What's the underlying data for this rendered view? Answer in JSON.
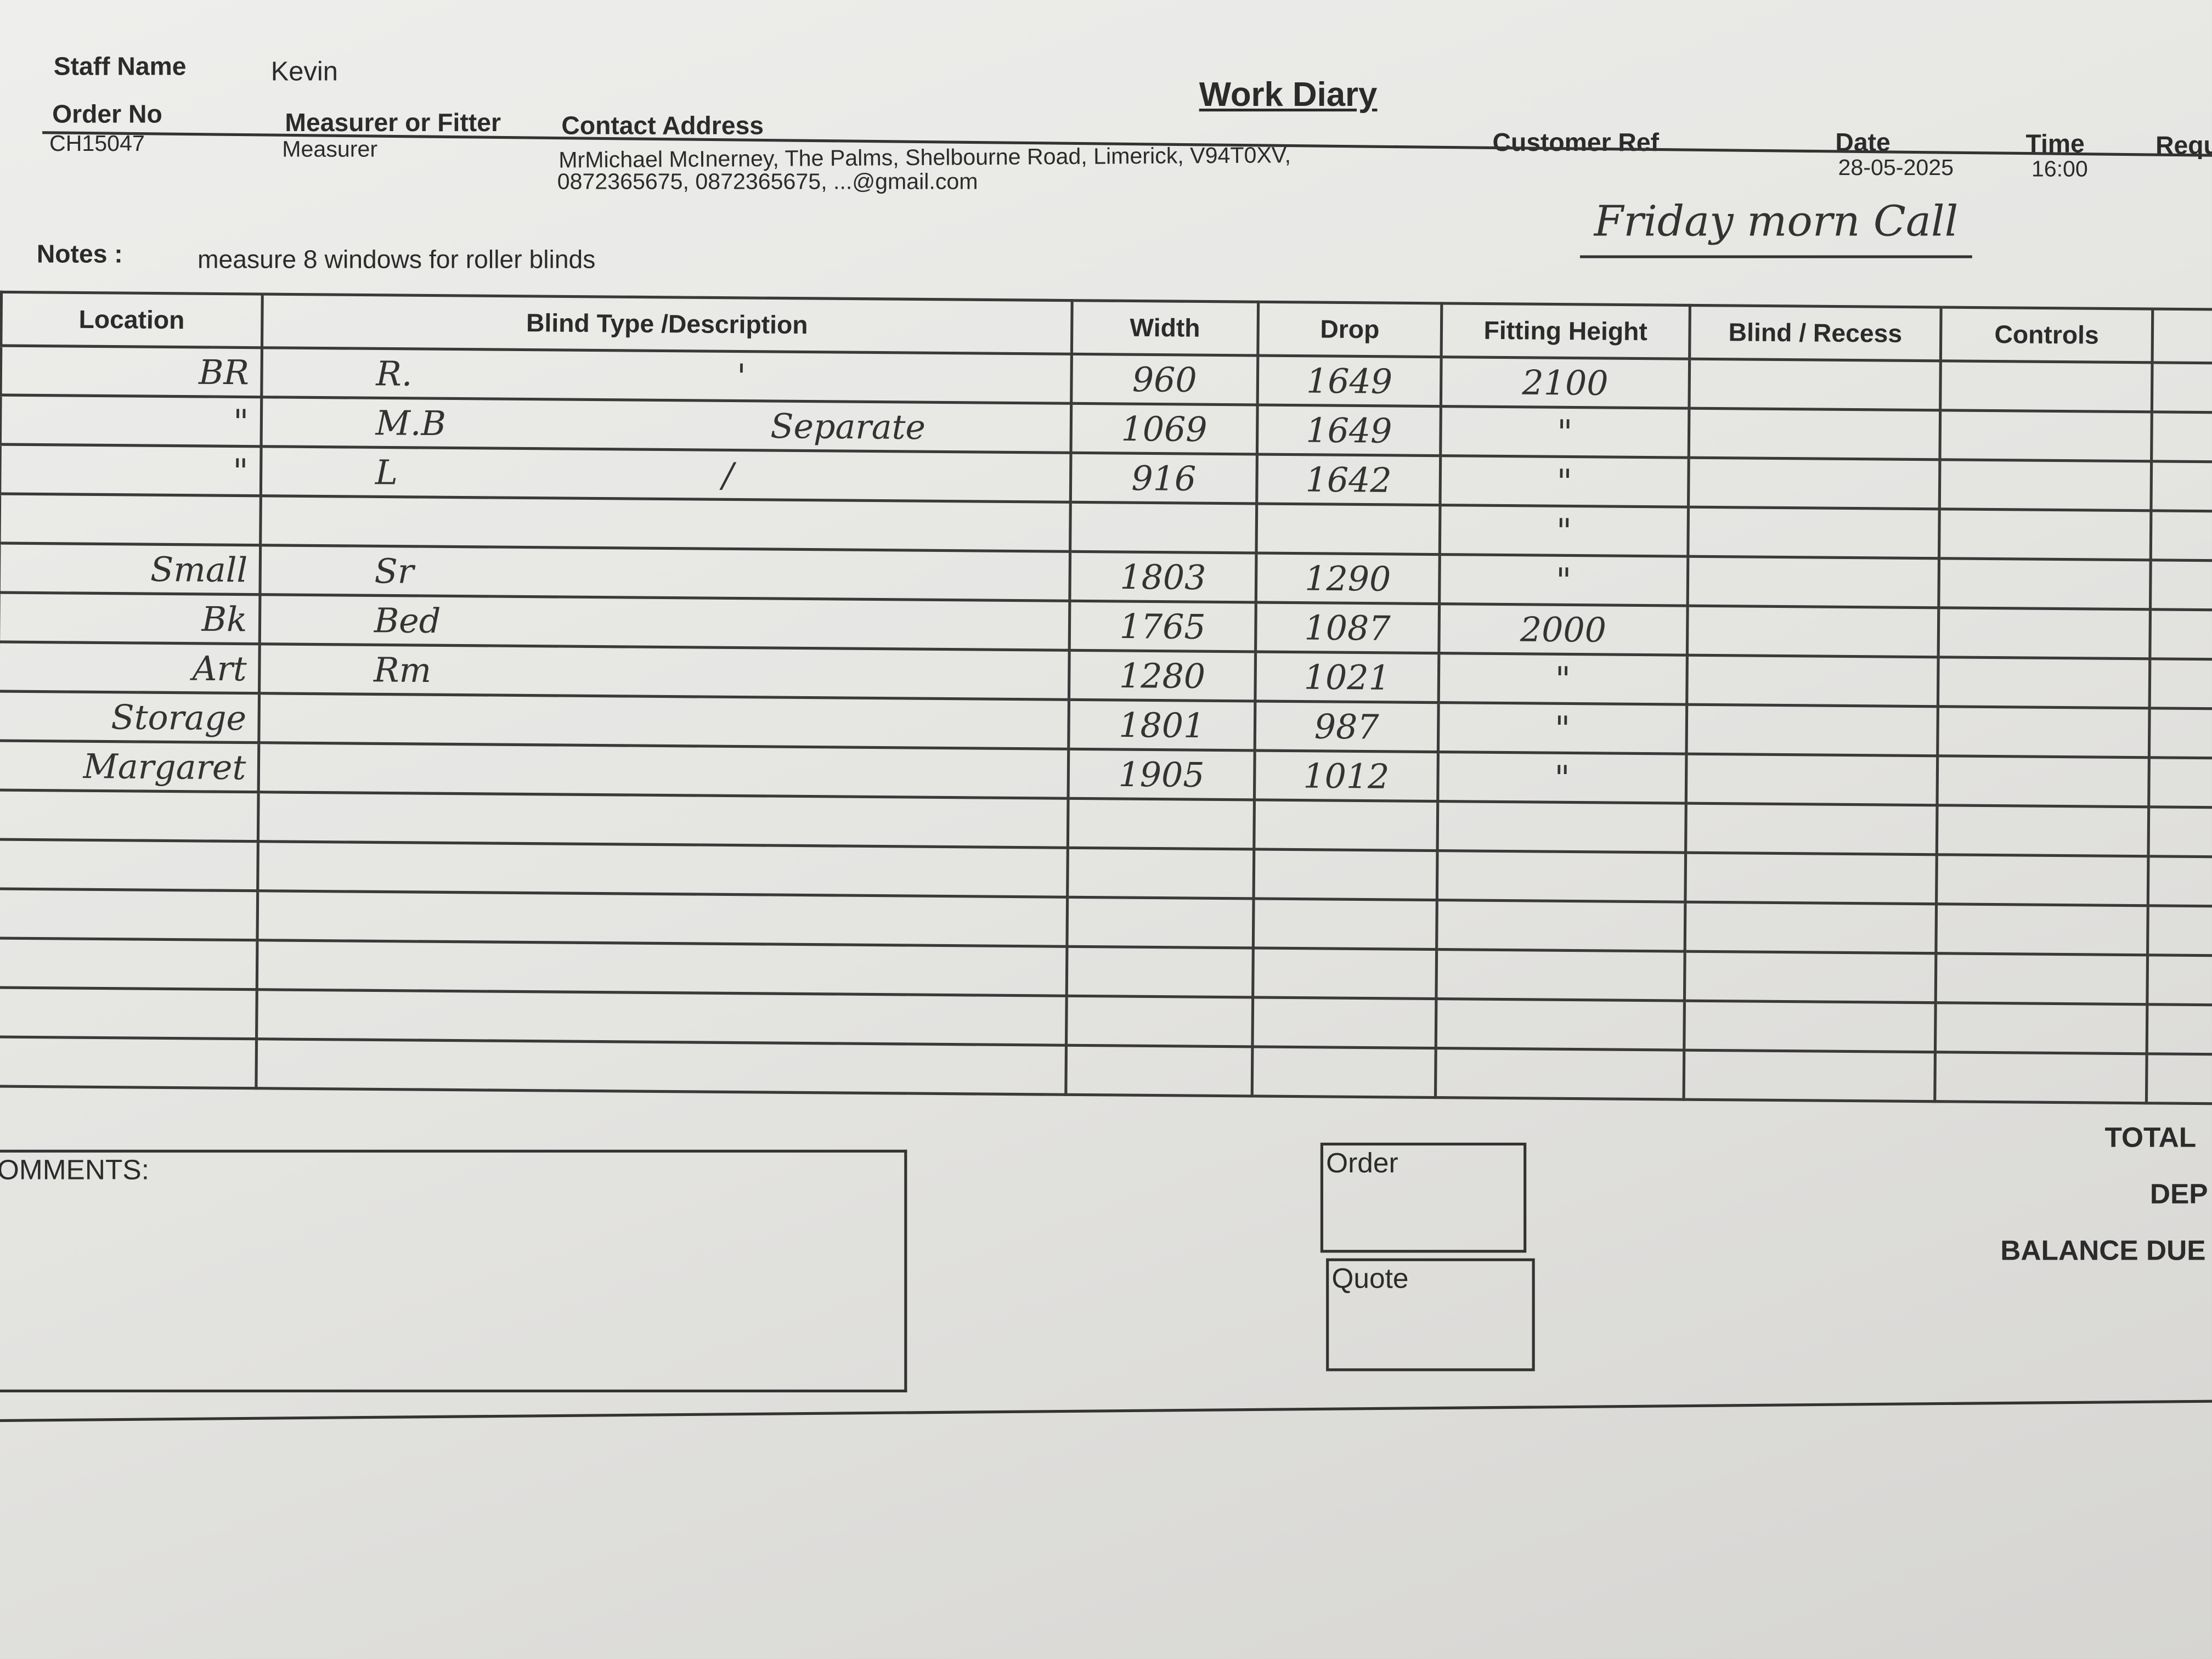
{
  "header": {
    "title": "Work Diary",
    "staff_name_label": "Staff Name",
    "staff_name": "Kevin",
    "order_no_label": "Order No",
    "order_no": "CH15047",
    "measurer_label": "Measurer or Fitter",
    "measurer": "Measurer",
    "contact_label": "Contact Address",
    "contact_line1": "MrMichael McInerney, The Palms, Shelbourne Road, Limerick, V94T0XV,",
    "contact_line2": "0872365675, 0872365675, ...@gmail.com",
    "customer_ref_label": "Customer Ref",
    "date_label": "Date",
    "date": "28-05-2025",
    "time_label": "Time",
    "time": "16:00",
    "requ_label": "Requ",
    "handwritten_note": "Friday morn Call"
  },
  "notes": {
    "label": "Notes :",
    "text": "measure 8 windows for roller blinds"
  },
  "table": {
    "columns": [
      "Location",
      "Blind Type /Description",
      "Width",
      "Drop",
      "Fitting Height",
      "Blind / Recess",
      "Controls"
    ],
    "rows": [
      {
        "location": "BR",
        "description": "R.",
        "note": "'",
        "width": "960",
        "drop": "1649",
        "fitting": "2100"
      },
      {
        "location": "\"",
        "description": "M.B",
        "note": "Separate",
        "width": "1069",
        "drop": "1649",
        "fitting": "\""
      },
      {
        "location": "\"",
        "description": "L",
        "note": "/",
        "width": "916",
        "drop": "1642",
        "fitting": "\""
      },
      {
        "location": "",
        "description": "",
        "note": "",
        "width": "",
        "drop": "",
        "fitting": "\""
      },
      {
        "location": "Small",
        "description": "Sr",
        "note": "",
        "width": "1803",
        "drop": "1290",
        "fitting": "\""
      },
      {
        "location": "Bk",
        "description": "Bed",
        "note": "",
        "width": "1765",
        "drop": "1087",
        "fitting": "2000"
      },
      {
        "location": "Art",
        "description": "Rm",
        "note": "",
        "width": "1280",
        "drop": "1021",
        "fitting": "\""
      },
      {
        "location": "Storage",
        "description": "",
        "note": "",
        "width": "1801",
        "drop": "987",
        "fitting": "\""
      },
      {
        "location": "Margaret",
        "description": "",
        "note": "",
        "width": "1905",
        "drop": "1012",
        "fitting": "\""
      },
      {
        "location": "",
        "description": "",
        "note": "",
        "width": "",
        "drop": "",
        "fitting": ""
      },
      {
        "location": "",
        "description": "",
        "note": "",
        "width": "",
        "drop": "",
        "fitting": ""
      },
      {
        "location": "",
        "description": "",
        "note": "",
        "width": "",
        "drop": "",
        "fitting": ""
      },
      {
        "location": "",
        "description": "",
        "note": "",
        "width": "",
        "drop": "",
        "fitting": ""
      },
      {
        "location": "",
        "description": "",
        "note": "",
        "width": "",
        "drop": "",
        "fitting": ""
      },
      {
        "location": "",
        "description": "",
        "note": "",
        "width": "",
        "drop": "",
        "fitting": ""
      }
    ]
  },
  "footer": {
    "comments_label": "OMMENTS:",
    "order_label": "Order",
    "quote_label": "Quote",
    "total_label": "TOTAL",
    "deposit_label": "DEP",
    "balance_label": "BALANCE DUE"
  }
}
